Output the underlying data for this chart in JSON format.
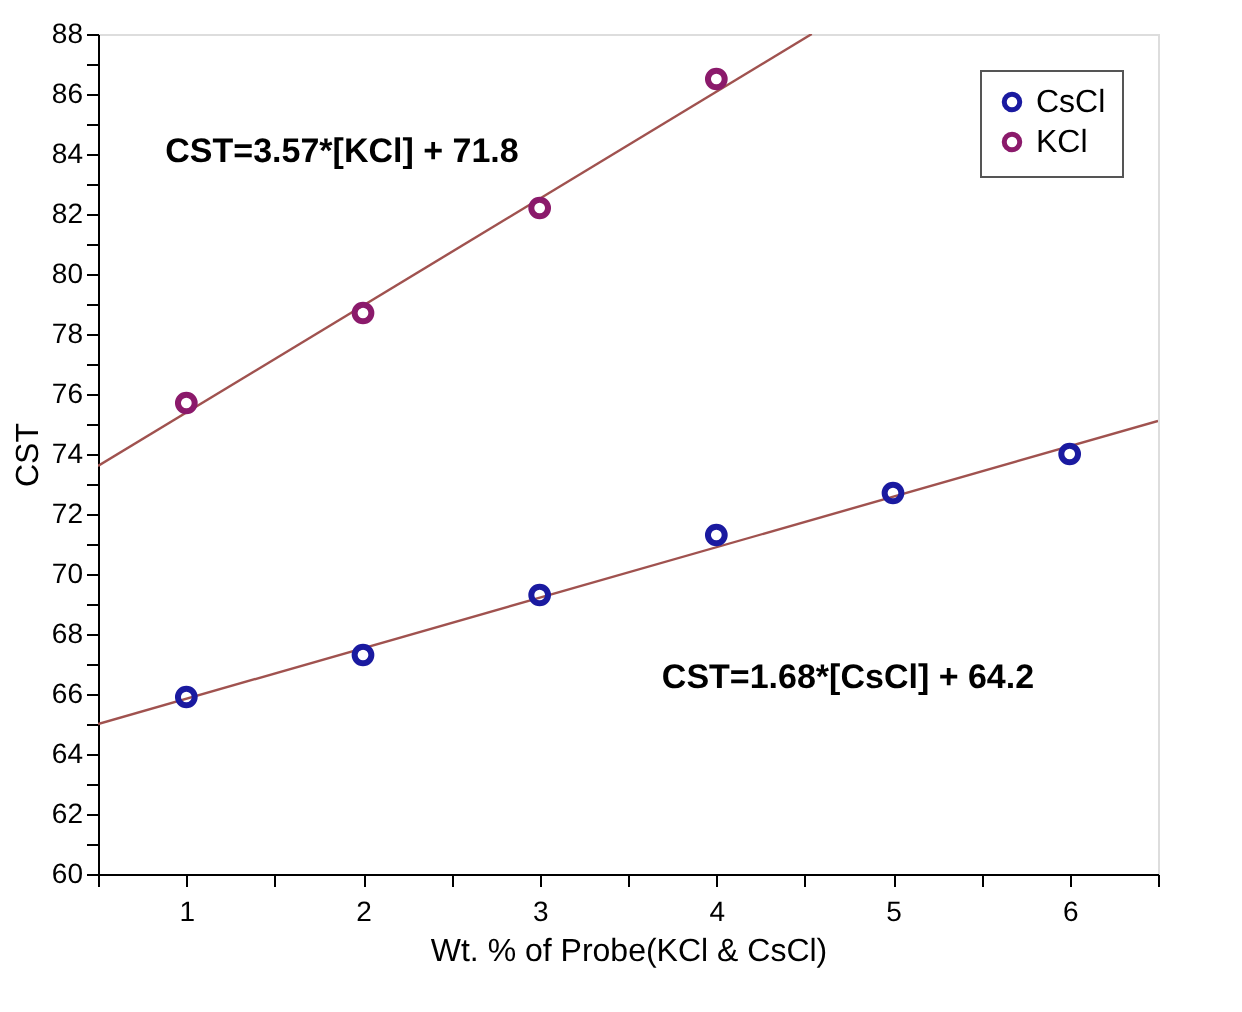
{
  "chart_data": {
    "type": "scatter",
    "xlabel": "Wt. % of Probe(KCl & CsCl)",
    "ylabel": "CST",
    "x": [
      1,
      2,
      3,
      4,
      5,
      6
    ],
    "series": [
      {
        "name": "CsCl",
        "color": "#1a1aa0",
        "values": [
          65.9,
          67.3,
          69.3,
          71.3,
          72.7,
          74.0
        ]
      },
      {
        "name": "KCl",
        "color": "#8b1a6b",
        "x": [
          1,
          2,
          3,
          4
        ],
        "values": [
          75.7,
          78.7,
          82.2,
          86.5
        ]
      },
      {
        "type": "line",
        "color": "#a0524f",
        "marker": "none",
        "x": [
          0.5,
          6.5
        ],
        "values": [
          65.0,
          75.1
        ]
      },
      {
        "type": "line",
        "color": "#a0524f",
        "marker": "none",
        "x": [
          0.5,
          4.54
        ],
        "values": [
          73.6,
          88.0
        ]
      }
    ],
    "xlim": [
      0.5,
      6.5
    ],
    "xticks": [
      {
        "value": 0.5,
        "label": null
      },
      1,
      {
        "value": 1.5,
        "label": null
      },
      2,
      {
        "value": 2.5,
        "label": null
      },
      3,
      {
        "value": 3.5,
        "label": null
      },
      4,
      {
        "value": 4.5,
        "label": null
      },
      5,
      {
        "value": 5.5,
        "label": null
      },
      6,
      {
        "value": 6.5,
        "label": null
      }
    ],
    "ylim": [
      60,
      88
    ],
    "yticks": [
      60,
      {
        "value": 61,
        "label": null
      },
      62,
      {
        "value": 63,
        "label": null
      },
      64,
      {
        "value": 65,
        "label": null
      },
      66,
      {
        "value": 67,
        "label": null
      },
      68,
      {
        "value": 69,
        "label": null
      },
      70,
      {
        "value": 71,
        "label": null
      },
      72,
      {
        "value": 73,
        "label": null
      },
      74,
      {
        "value": 75,
        "label": null
      },
      76,
      {
        "value": 77,
        "label": null
      },
      78,
      {
        "value": 79,
        "label": null
      },
      80,
      {
        "value": 81,
        "label": null
      },
      82,
      {
        "value": 83,
        "label": null
      },
      84,
      {
        "value": 85,
        "label": null
      },
      86,
      {
        "value": 87,
        "label": null
      },
      88
    ],
    "annotations": [
      "CST=3.57*[KCl] + 71.8",
      "CST=1.68*[CsCl] + 64.2"
    ],
    "marker": "circle",
    "line_style": "solid",
    "grid": false,
    "legend": "top right"
  }
}
